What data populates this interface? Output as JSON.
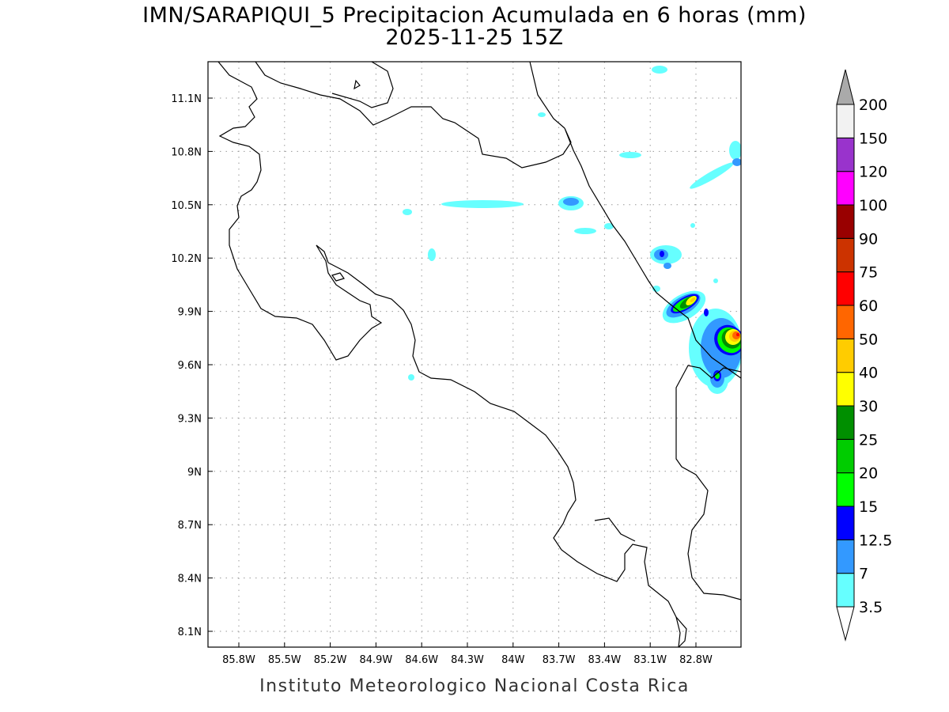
{
  "title": {
    "line1": "IMN/SARAPIQUI_5 Precipitacion Acumulada en 6 horas (mm)",
    "line2": "2025-11-25 15Z"
  },
  "footer": "Instituto Meteorologico Nacional Costa Rica",
  "axes": {
    "lon_ticks": [
      "85.8W",
      "85.5W",
      "85.2W",
      "84.9W",
      "84.6W",
      "84.3W",
      "84W",
      "83.7W",
      "83.4W",
      "83.1W",
      "82.8W"
    ],
    "lat_ticks": [
      "11.1N",
      "10.8N",
      "10.5N",
      "10.2N",
      "9.9N",
      "9.6N",
      "9.3N",
      "9N",
      "8.7N",
      "8.4N",
      "8.1N"
    ]
  },
  "colorbar": {
    "labels": [
      "3.5",
      "7",
      "12.5",
      "15",
      "20",
      "25",
      "30",
      "40",
      "50",
      "60",
      "75",
      "90",
      "100",
      "120",
      "150",
      "200"
    ],
    "colors": [
      "#66ffff",
      "#3399ff",
      "#0000ff",
      "#00ff00",
      "#00cc00",
      "#008f00",
      "#ffff00",
      "#ffcc00",
      "#ff6600",
      "#ff0000",
      "#cc3300",
      "#990000",
      "#ff00ff",
      "#9933cc",
      "#f2f2f2"
    ],
    "under_color": "#ffffff",
    "over_color": "#aaaaaa"
  },
  "precip_features": [
    {
      "lon": -82.75,
      "lat": 9.72,
      "max_mm": 60
    },
    {
      "lon": -82.85,
      "lat": 9.95,
      "max_mm": 40
    },
    {
      "lon": -82.73,
      "lat": 9.52,
      "max_mm": 15
    },
    {
      "lon": -83.0,
      "lat": 10.22,
      "max_mm": 12.5
    },
    {
      "lon": -83.6,
      "lat": 10.52,
      "max_mm": 7
    },
    {
      "lon": -84.2,
      "lat": 10.5,
      "max_mm": 3.5
    }
  ]
}
